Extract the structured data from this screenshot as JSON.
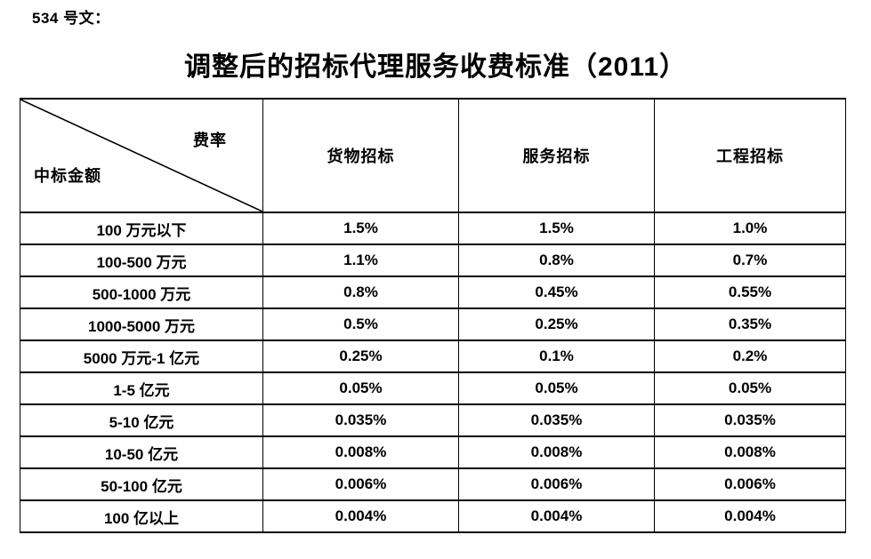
{
  "page": {
    "doc_ref": "534 号文：",
    "title": "调整后的招标代理服务收费标准（2011）"
  },
  "table": {
    "corner": {
      "top_right": "费率",
      "bottom_left": "中标金额"
    },
    "columns": [
      "货物招标",
      "服务招标",
      "工程招标"
    ],
    "rows": [
      {
        "label": "100 万元以下",
        "values": [
          "1.5%",
          "1.5%",
          "1.0%"
        ]
      },
      {
        "label": "100-500 万元",
        "values": [
          "1.1%",
          "0.8%",
          "0.7%"
        ]
      },
      {
        "label": "500-1000 万元",
        "values": [
          "0.8%",
          "0.45%",
          "0.55%"
        ]
      },
      {
        "label": "1000-5000 万元",
        "values": [
          "0.5%",
          "0.25%",
          "0.35%"
        ]
      },
      {
        "label": "5000 万元-1 亿元",
        "values": [
          "0.25%",
          "0.1%",
          "0.2%"
        ]
      },
      {
        "label": "1-5 亿元",
        "values": [
          "0.05%",
          "0.05%",
          "0.05%"
        ]
      },
      {
        "label": "5-10 亿元",
        "values": [
          "0.035%",
          "0.035%",
          "0.035%"
        ]
      },
      {
        "label": "10-50 亿元",
        "values": [
          "0.008%",
          "0.008%",
          "0.008%"
        ]
      },
      {
        "label": "50-100 亿元",
        "values": [
          "0.006%",
          "0.006%",
          "0.006%"
        ]
      },
      {
        "label": "100 亿以上",
        "values": [
          "0.004%",
          "0.004%",
          "0.004%"
        ]
      }
    ],
    "colors": {
      "border": "#000000",
      "text": "#000000",
      "background": "#ffffff"
    }
  }
}
